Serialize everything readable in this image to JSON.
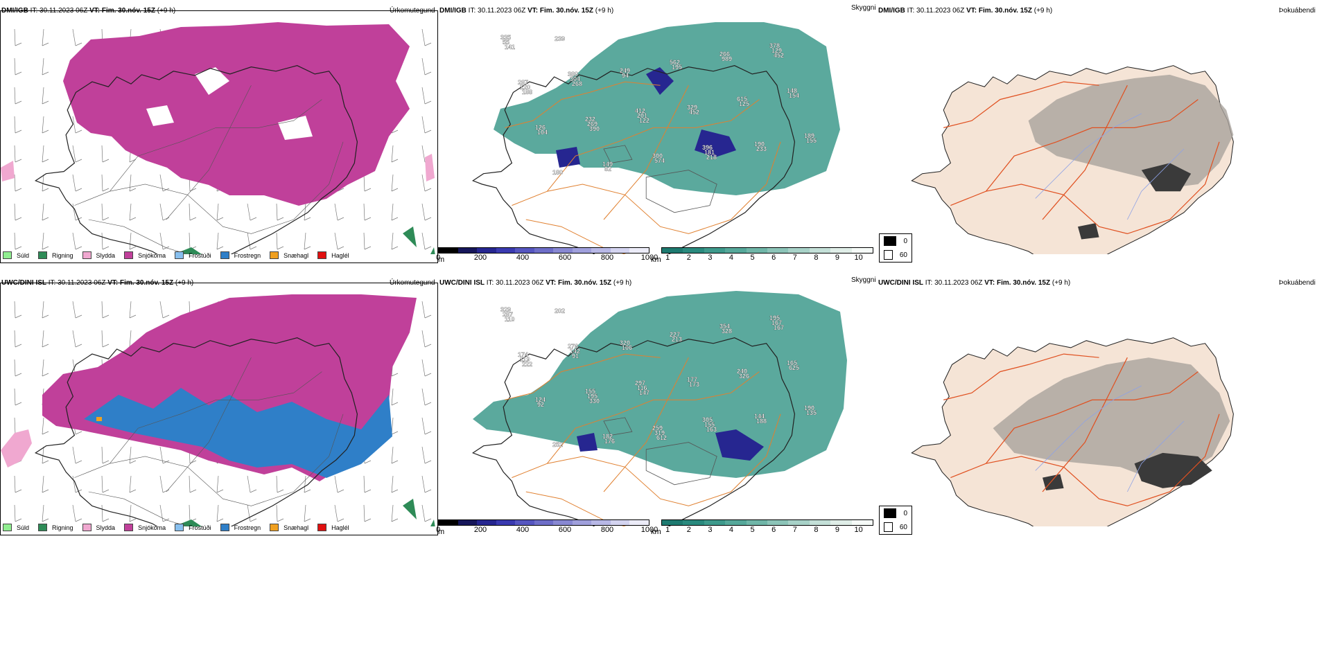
{
  "rows": [
    {
      "model": "DMI/IGB",
      "it_label": "IT:",
      "it_value": "30.11.2023 06Z",
      "vt_label": "VT:",
      "vt_value": "Fim. 30.nóv. 15Z",
      "lead": "(+9 h)",
      "panel1_right": "Úrkomutegund",
      "panel2_right": "Skyggni",
      "panel3_right": "Þokuábendi",
      "ceiling_labels": [
        "335",
        "380",
        "412",
        "396",
        "378",
        "287",
        "232",
        "300",
        "266",
        "148",
        "126",
        "149",
        "562",
        "615",
        "189",
        "180",
        "249",
        "329",
        "190",
        "55",
        "304",
        "201",
        "181",
        "129",
        "120",
        "269",
        "574",
        "989",
        "154",
        "104",
        "82",
        "195",
        "125",
        "155",
        "239",
        "94",
        "452",
        "233",
        "141",
        "268",
        "122",
        "218",
        "452",
        "188",
        "390"
      ],
      "visibility_labels": []
    },
    {
      "model": "UWC/DINI ISL",
      "it_label": "IT:",
      "it_value": "30.11.2023 06Z",
      "vt_label": "VT:",
      "vt_value": "Fim. 30.nóv. 15Z",
      "lead": "(+9 h)",
      "panel1_right": "Úrkomutegund",
      "panel2_right": "Skyggni",
      "panel3_right": "Þokuábendi",
      "ceiling_labels": [
        "329",
        "276",
        "297",
        "305",
        "195",
        "174",
        "155",
        "259",
        "354",
        "165",
        "124",
        "182",
        "227",
        "240",
        "190",
        "252",
        "320",
        "177",
        "144",
        "287",
        "142",
        "116",
        "155",
        "167",
        "119",
        "195",
        "319",
        "328",
        "625",
        "92",
        "176",
        "213",
        "326",
        "135",
        "202",
        "106",
        "173",
        "188",
        "110",
        "91",
        "147",
        "163",
        "167",
        "222",
        "330",
        "612"
      ],
      "visibility_labels": []
    }
  ],
  "precip_legend": [
    {
      "label": "Súld",
      "color": "#90ee90"
    },
    {
      "label": "Rigning",
      "color": "#2e8b57"
    },
    {
      "label": "Slydda",
      "color": "#f0a8d0"
    },
    {
      "label": "Snjókoma",
      "color": "#c0409a"
    },
    {
      "label": "Frostúði",
      "color": "#87bfee"
    },
    {
      "label": "Frostregn",
      "color": "#2f7fc8"
    },
    {
      "label": "Snæhagl",
      "color": "#f0a020"
    },
    {
      "label": "Haglél",
      "color": "#e01010"
    }
  ],
  "ceiling_bar": {
    "unit": "m",
    "ticks": [
      "0",
      "200",
      "400",
      "600",
      "800",
      "1000"
    ],
    "colors": [
      "#000000",
      "#16165a",
      "#262690",
      "#3a3ab0",
      "#5656c0",
      "#6e6ec8",
      "#8888d2",
      "#a0a0dc",
      "#b8b8e6",
      "#d4d4f0",
      "#ececf8"
    ]
  },
  "visibility_bar": {
    "unit": "km",
    "ticks": [
      "1",
      "2",
      "3",
      "4",
      "5",
      "6",
      "7",
      "8",
      "9",
      "10"
    ],
    "colors": [
      "#1e7a70",
      "#2a8a7e",
      "#3e9a8c",
      "#56a89a",
      "#70b6a8",
      "#8cc4b8",
      "#a8d2c8",
      "#c4e0d8",
      "#e0eee8",
      "#f6fbf8"
    ]
  },
  "fog_legend": [
    {
      "label": "0",
      "color": "#000000"
    },
    {
      "label": "60",
      "color": "#ffffff"
    }
  ]
}
